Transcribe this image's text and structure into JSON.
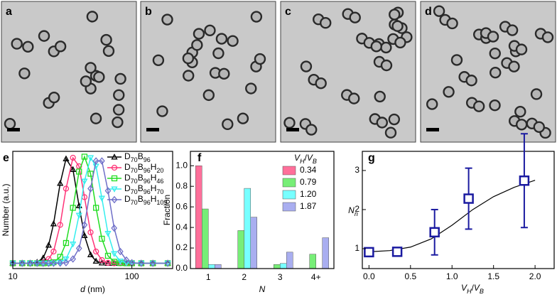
{
  "micrographs": [
    {
      "label": "a"
    },
    {
      "label": "b"
    },
    {
      "label": "c"
    },
    {
      "label": "d"
    }
  ],
  "chart_data": [
    {
      "type": "line",
      "panel_label": "e",
      "xlabel": "d (nm)",
      "ylabel": "Number (a.u.)",
      "xscale": "log",
      "xlim": [
        10,
        220
      ],
      "xticks": [
        10,
        100
      ],
      "ylim": [
        -0.05,
        1.05
      ],
      "legend": "upper right",
      "x": [
        10,
        12,
        14,
        16,
        18,
        20,
        22,
        25,
        28,
        32,
        36,
        40,
        45,
        50,
        56,
        63,
        71,
        80,
        90,
        100,
        120,
        150,
        200
      ],
      "series": [
        {
          "name": "D70B96",
          "color": "#000000",
          "marker": "triangle",
          "values": [
            0,
            0,
            0.001,
            0.01,
            0.05,
            0.17,
            0.37,
            0.75,
            0.98,
            0.88,
            0.54,
            0.26,
            0.08,
            0.02,
            0.003,
            0,
            0,
            0,
            0,
            0,
            0,
            0,
            0
          ]
        },
        {
          "name": "D70B96H20",
          "color": "#ff3377",
          "marker": "circle",
          "values": [
            0,
            0,
            0,
            0.001,
            0.008,
            0.04,
            0.11,
            0.36,
            0.7,
            0.99,
            0.91,
            0.62,
            0.29,
            0.11,
            0.03,
            0.004,
            0,
            0,
            0,
            0,
            0,
            0,
            0
          ]
        },
        {
          "name": "D70B96H46",
          "color": "#22dd22",
          "marker": "square",
          "values": [
            0,
            0,
            0,
            0,
            0,
            0.002,
            0.009,
            0.06,
            0.19,
            0.52,
            0.86,
            1,
            0.84,
            0.52,
            0.23,
            0.07,
            0.014,
            0.002,
            0,
            0,
            0,
            0,
            0
          ]
        },
        {
          "name": "D70B96H70",
          "color": "#33eeee",
          "marker": "triangle-down",
          "values": [
            0,
            0,
            0,
            0,
            0,
            0,
            0.001,
            0.008,
            0.04,
            0.18,
            0.45,
            0.77,
            0.99,
            0.91,
            0.61,
            0.28,
            0.09,
            0.02,
            0.003,
            0,
            0,
            0,
            0
          ]
        },
        {
          "name": "D70B96H109",
          "color": "#6f6fc8",
          "marker": "diamond",
          "values": [
            0,
            0,
            0,
            0,
            0,
            0,
            0,
            0.001,
            0.005,
            0.04,
            0.14,
            0.36,
            0.7,
            0.96,
            0.96,
            0.68,
            0.33,
            0.11,
            0.03,
            0.005,
            0,
            0,
            0
          ]
        }
      ]
    },
    {
      "type": "bar",
      "panel_label": "f",
      "xlabel": "N",
      "ylabel": "Fraction",
      "legend_title": "VH/VB",
      "legend": "upper right",
      "ylim": [
        0,
        1.14
      ],
      "yticks": [
        {
          "value": 0,
          "label": "0.0"
        },
        {
          "value": 0.2,
          "label": "0.2"
        },
        {
          "value": 0.4,
          "label": "0.4"
        },
        {
          "value": 0.6,
          "label": "0.6"
        },
        {
          "value": 0.8,
          "label": "0.8"
        },
        {
          "value": 1.0,
          "label": "1.0"
        }
      ],
      "categories": [
        "1",
        "2",
        "3",
        "4+"
      ],
      "series": [
        {
          "name": "0.34",
          "color": "#ff6f9a",
          "values": [
            1.0,
            0,
            0,
            0
          ]
        },
        {
          "name": "0.79",
          "color": "#77ee77",
          "values": [
            0.58,
            0.37,
            0.04,
            0.14
          ]
        },
        {
          "name": "1.20",
          "color": "#77ffff",
          "values": [
            0.04,
            0.78,
            0.05,
            0
          ]
        },
        {
          "name": "1.87",
          "color": "#a9aef0",
          "values": [
            0.04,
            0.5,
            0.16,
            0.3
          ]
        }
      ]
    },
    {
      "type": "scatter",
      "panel_label": "g",
      "xlabel": "VH/VB",
      "ylabel": "Nn",
      "color": "#1a1aa0",
      "xlim": [
        -0.08,
        2.23
      ],
      "ylim": [
        0.49,
        3.49
      ],
      "xticks": [
        {
          "value": 0,
          "label": "0.0"
        },
        {
          "value": 0.5,
          "label": "0.5"
        },
        {
          "value": 1.0,
          "label": "1.0"
        },
        {
          "value": 1.5,
          "label": "1.5"
        },
        {
          "value": 2.0,
          "label": "2.0"
        }
      ],
      "yticks": [
        1,
        2,
        3
      ],
      "x": [
        0,
        0.34,
        0.79,
        1.2,
        1.87
      ],
      "values": [
        0.91,
        0.92,
        1.42,
        2.28,
        2.74
      ],
      "errors": [
        0,
        0,
        0.58,
        0.78,
        1.2
      ],
      "fit": {
        "x": [
          0,
          0.25,
          0.5,
          0.75,
          1.0,
          1.25,
          1.5,
          1.75,
          2.0
        ],
        "y": [
          0.92,
          0.95,
          1.04,
          1.25,
          1.6,
          2.0,
          2.33,
          2.57,
          2.75
        ]
      }
    }
  ]
}
